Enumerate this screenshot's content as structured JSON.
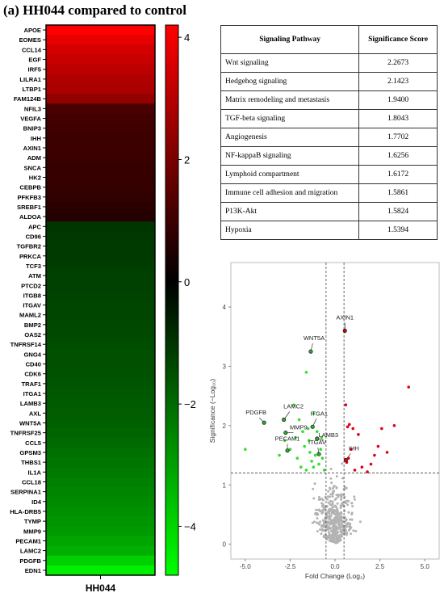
{
  "title": "(a) HH044 compared to control",
  "colors": {
    "high": "#ff0000",
    "mid": "#000000",
    "low": "#00ff00"
  },
  "chart_data": [
    {
      "type": "heatmap",
      "column_label": "HH044",
      "colorbar_ticks": [
        4,
        2,
        0,
        -2,
        -4
      ],
      "colorbar_range": [
        -4.8,
        4.2
      ],
      "rows": [
        {
          "gene": "APOE",
          "value": 4.2
        },
        {
          "gene": "EOMES",
          "value": 3.8
        },
        {
          "gene": "CCL14",
          "value": 3.5
        },
        {
          "gene": "EGF",
          "value": 3.3
        },
        {
          "gene": "IRF5",
          "value": 3.1
        },
        {
          "gene": "LILRA1",
          "value": 2.9
        },
        {
          "gene": "LTBP1",
          "value": 2.8
        },
        {
          "gene": "FAM124B",
          "value": 2.4
        },
        {
          "gene": "NFIL3",
          "value": 1.2
        },
        {
          "gene": "VEGFA",
          "value": 1.1
        },
        {
          "gene": "BNIP3",
          "value": 1.05
        },
        {
          "gene": "IHH",
          "value": 1.0
        },
        {
          "gene": "AXIN1",
          "value": 1.0
        },
        {
          "gene": "ADM",
          "value": 0.95
        },
        {
          "gene": "SNCA",
          "value": 0.9
        },
        {
          "gene": "HK2",
          "value": 0.9
        },
        {
          "gene": "CEBPB",
          "value": 0.85
        },
        {
          "gene": "PFKFB3",
          "value": 0.8
        },
        {
          "gene": "SREBF1",
          "value": 0.7
        },
        {
          "gene": "ALDOA",
          "value": 0.6
        },
        {
          "gene": "APC",
          "value": -1.0
        },
        {
          "gene": "CD96",
          "value": -1.05
        },
        {
          "gene": "TGFBR2",
          "value": -1.1
        },
        {
          "gene": "PRKCA",
          "value": -1.1
        },
        {
          "gene": "TCF3",
          "value": -1.15
        },
        {
          "gene": "ATM",
          "value": -1.2
        },
        {
          "gene": "PTCD2",
          "value": -1.2
        },
        {
          "gene": "ITGB8",
          "value": -1.25
        },
        {
          "gene": "ITGAV",
          "value": -1.3
        },
        {
          "gene": "MAML2",
          "value": -1.3
        },
        {
          "gene": "BMP2",
          "value": -1.35
        },
        {
          "gene": "OAS2",
          "value": -1.4
        },
        {
          "gene": "TNFRSF14",
          "value": -1.45
        },
        {
          "gene": "GNG4",
          "value": -1.5
        },
        {
          "gene": "CD40",
          "value": -1.5
        },
        {
          "gene": "CDK6",
          "value": -1.55
        },
        {
          "gene": "TRAF1",
          "value": -1.6
        },
        {
          "gene": "ITGA1",
          "value": -1.65
        },
        {
          "gene": "LAMB3",
          "value": -1.7
        },
        {
          "gene": "AXL",
          "value": -1.75
        },
        {
          "gene": "WNT5A",
          "value": -1.8
        },
        {
          "gene": "TNFRSF25",
          "value": -1.9
        },
        {
          "gene": "CCL5",
          "value": -2.0
        },
        {
          "gene": "GPSM3",
          "value": -2.1
        },
        {
          "gene": "THBS1",
          "value": -2.2
        },
        {
          "gene": "IL1A",
          "value": -2.3
        },
        {
          "gene": "CCL18",
          "value": -2.4
        },
        {
          "gene": "SERPINA1",
          "value": -2.5
        },
        {
          "gene": "ID4",
          "value": -2.6
        },
        {
          "gene": "HLA-DRB5",
          "value": -2.7
        },
        {
          "gene": "TYMP",
          "value": -2.8
        },
        {
          "gene": "MMP9",
          "value": -2.9
        },
        {
          "gene": "PECAM1",
          "value": -3.1
        },
        {
          "gene": "LAMC2",
          "value": -3.3
        },
        {
          "gene": "PDGFB",
          "value": -3.9
        },
        {
          "gene": "EDN1",
          "value": -4.5
        }
      ]
    },
    {
      "type": "table",
      "headers": [
        "Signaling Pathway",
        "Significance Score"
      ],
      "rows": [
        [
          "Wnt signaling",
          "2.2673"
        ],
        [
          "Hedgehog signaling",
          "2.1423"
        ],
        [
          "Matrix remodeling and metastasis",
          "1.9400"
        ],
        [
          "TGF-beta signaling",
          "1.8043"
        ],
        [
          "Angiogenesis",
          "1.7702"
        ],
        [
          "NF-kappaB signaling",
          "1.6256"
        ],
        [
          "Lymphoid compartment",
          "1.6172"
        ],
        [
          "Immune cell adhesion and migration",
          "1.5861"
        ],
        [
          "P13K-Akt",
          "1.5824"
        ],
        [
          "Hypoxia",
          "1.5394"
        ]
      ]
    },
    {
      "type": "scatter",
      "xlabel": "Fold Change (Log₂)",
      "ylabel": "Significance (−Log₁₀)",
      "xlim": [
        -5.8,
        5.8
      ],
      "ylim": [
        -0.25,
        4.75
      ],
      "xticks": [
        "-5.0",
        "-2.5",
        "0.0",
        "2.5",
        "5.0"
      ],
      "yticks": [
        "0",
        "1",
        "2",
        "3",
        "4"
      ],
      "fc_thresholds": [
        -0.5,
        0.5
      ],
      "significance_threshold": 1.2,
      "labeled_points": [
        {
          "label": "AXIN1",
          "x": 0.55,
          "y": 3.6,
          "color": "red"
        },
        {
          "label": "WNT5A",
          "x": -1.35,
          "y": 3.25,
          "color": "green"
        },
        {
          "label": "LAMC2",
          "x": -2.85,
          "y": 2.1,
          "color": "green"
        },
        {
          "label": "PDGFB",
          "x": -3.95,
          "y": 2.05,
          "color": "green"
        },
        {
          "label": "MMP9",
          "x": -2.75,
          "y": 1.88,
          "color": "green"
        },
        {
          "label": "ITGA1",
          "x": -1.25,
          "y": 1.98,
          "color": "green"
        },
        {
          "label": "LAMB3",
          "x": -1.0,
          "y": 1.78,
          "color": "green"
        },
        {
          "label": "PECAM1",
          "x": -2.65,
          "y": 1.58,
          "color": "green"
        },
        {
          "label": "ITGAV",
          "x": -0.9,
          "y": 1.52,
          "color": "green"
        },
        {
          "label": "IHH",
          "x": 0.6,
          "y": 1.42,
          "color": "red"
        }
      ],
      "red_points": [
        [
          4.1,
          2.65
        ],
        [
          3.3,
          2.0
        ],
        [
          2.6,
          1.95
        ],
        [
          2.2,
          1.5
        ],
        [
          2.4,
          1.65
        ],
        [
          2.0,
          1.35
        ],
        [
          1.5,
          1.3
        ],
        [
          1.0,
          1.95
        ],
        [
          0.7,
          1.98
        ],
        [
          0.8,
          2.02
        ],
        [
          1.3,
          1.85
        ],
        [
          0.9,
          1.6
        ],
        [
          0.65,
          1.38
        ],
        [
          0.75,
          1.45
        ],
        [
          1.1,
          1.25
        ],
        [
          2.9,
          1.55
        ],
        [
          1.8,
          1.22
        ],
        [
          0.6,
          2.35
        ]
      ],
      "green_points": [
        [
          -5.0,
          1.6
        ],
        [
          -2.3,
          2.35
        ],
        [
          -1.6,
          2.9
        ],
        [
          -2.0,
          2.1
        ],
        [
          -1.8,
          1.9
        ],
        [
          -1.5,
          1.95
        ],
        [
          -1.2,
          2.2
        ],
        [
          -1.0,
          1.9
        ],
        [
          -1.7,
          1.65
        ],
        [
          -1.4,
          1.55
        ],
        [
          -1.1,
          1.5
        ],
        [
          -0.8,
          1.6
        ],
        [
          -2.1,
          1.45
        ],
        [
          -1.9,
          1.3
        ],
        [
          -1.3,
          1.4
        ],
        [
          -0.9,
          1.35
        ],
        [
          -0.7,
          1.45
        ],
        [
          -2.5,
          1.6
        ],
        [
          -1.6,
          1.25
        ],
        [
          -1.2,
          1.3
        ],
        [
          -0.6,
          1.25
        ],
        [
          -2.8,
          1.75
        ],
        [
          -3.1,
          1.5
        ],
        [
          -0.75,
          1.8
        ],
        [
          -1.45,
          1.75
        ],
        [
          -2.2,
          1.8
        ]
      ],
      "grey_point_count": 420
    }
  ]
}
